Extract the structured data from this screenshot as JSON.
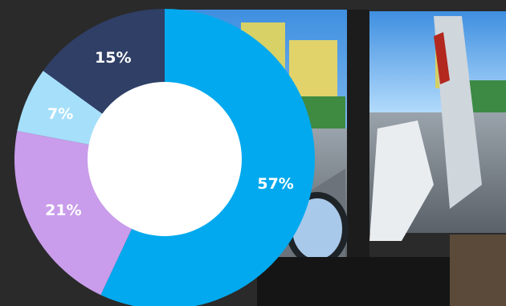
{
  "chart_data": {
    "type": "pie",
    "donut": true,
    "title": "",
    "slices": [
      {
        "label": "57%",
        "value": 57,
        "color": "#03A9EE"
      },
      {
        "label": "21%",
        "value": 21,
        "color": "#C99DEB"
      },
      {
        "label": "7%",
        "value": 7,
        "color": "#A6DFFA"
      },
      {
        "label": "15%",
        "value": 15,
        "color": "#2F3F66"
      }
    ],
    "start_angle_deg": 0,
    "direction": "clockwise"
  },
  "background": {
    "description_icon": "driving-simulator-photo"
  }
}
